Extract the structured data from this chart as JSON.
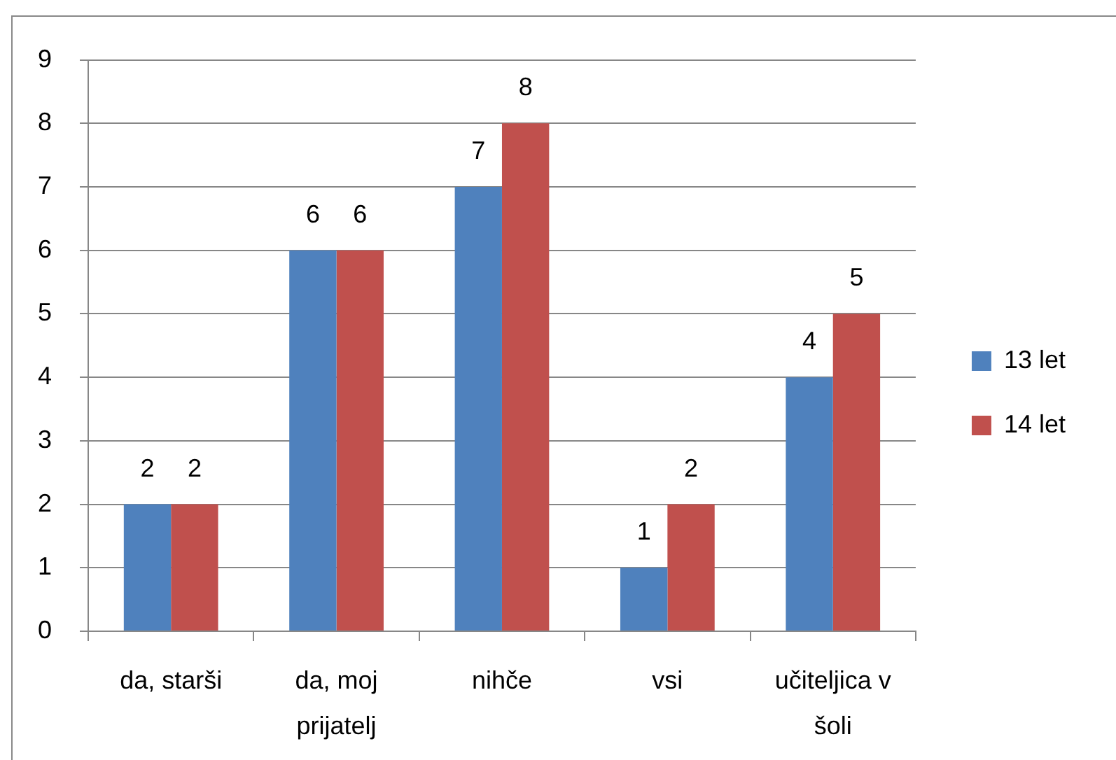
{
  "chart_data": {
    "type": "bar",
    "categories": [
      "da, starši",
      "da, moj prijatelj",
      "nihče",
      "vsi",
      "učiteljica v šoli"
    ],
    "series": [
      {
        "name": "13 let",
        "color": "#4f81bd",
        "values": [
          2,
          6,
          7,
          1,
          4
        ]
      },
      {
        "name": "14 let",
        "color": "#c0504d",
        "values": [
          2,
          6,
          8,
          2,
          5
        ]
      }
    ],
    "ylim": [
      0,
      9
    ],
    "yticks": [
      0,
      1,
      2,
      3,
      4,
      5,
      6,
      7,
      8,
      9
    ],
    "grid": "y",
    "legend": "right",
    "data_labels": true
  }
}
